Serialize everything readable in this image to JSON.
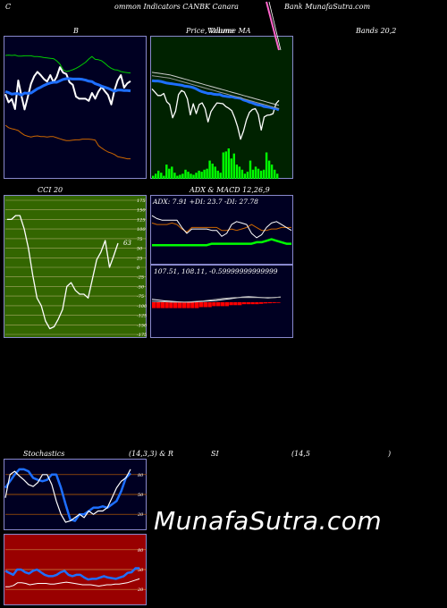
{
  "header": {
    "left": "C",
    "center": "ommon  Indicators CANBK Canara",
    "right": "Bank MunafaSutra.com"
  },
  "watermark": "MunafaSutra.com",
  "colors": {
    "bg": "#000000",
    "navy": "#000022",
    "green_panel": "#002200",
    "olive": "#336600",
    "maroon": "#990000",
    "blue_line": "#1e6fff",
    "volume_green": "#00ff00"
  },
  "chart_data": [
    {
      "id": "bollinger",
      "type": "line",
      "title": "B",
      "title_right": "Bands 20,2",
      "series": [
        {
          "color": "#ffffff",
          "values": [
            10.7,
            8.4,
            9.3,
            6.5,
            14.5,
            10.3,
            6.4,
            9.9,
            13.6,
            15.7,
            16.9,
            16.0,
            14.9,
            14.2,
            16.0,
            14.0,
            15.5,
            18.2,
            16.7,
            16.3,
            14.0,
            13.3,
            10.0,
            9.4,
            9.4,
            9.4,
            8.8,
            11.0,
            9.4,
            11.4,
            12.7,
            11.5,
            10.4,
            7.8,
            11.8,
            14.5,
            16.0,
            12.5,
            13.7,
            14.3
          ]
        },
        {
          "color": "#1e6fff",
          "values": [
            11.4,
            11.1,
            10.7,
            10.8,
            10.8,
            10.4,
            11.0,
            10.9,
            11.0,
            11.6,
            12.2,
            12.6,
            13.1,
            13.5,
            13.8,
            14.0,
            14.0,
            14.4,
            14.8,
            15.0,
            15.0,
            14.9,
            14.9,
            14.9,
            14.8,
            14.6,
            14.3,
            14.2,
            13.6,
            13.3,
            12.9,
            12.6,
            12.3,
            11.9,
            11.5,
            11.8,
            11.8,
            11.7,
            11.7,
            11.6
          ]
        },
        {
          "color": "#00cc00",
          "values": [
            21.5,
            21.6,
            21.5,
            21.6,
            21.3,
            21.3,
            21.4,
            21.4,
            21.4,
            21.2,
            21.2,
            21.1,
            20.9,
            20.8,
            20.7,
            20.6,
            20.0,
            19.1,
            17.5,
            17.0,
            17.2,
            17.5,
            17.9,
            18.4,
            19.0,
            19.6,
            20.5,
            21.2,
            20.4,
            20.3,
            20.0,
            19.3,
            18.5,
            17.9,
            17.5,
            17.4,
            17.0,
            16.8,
            16.7,
            16.6
          ]
        },
        {
          "color": "#cc6600",
          "values": [
            2.0,
            1.3,
            1.0,
            0.8,
            0.5,
            -0.2,
            -0.8,
            -1.1,
            -1.3,
            -1.1,
            -1.0,
            -1.2,
            -1.2,
            -1.3,
            -1.2,
            -1.2,
            -1.5,
            -1.8,
            -2.1,
            -2.3,
            -2.3,
            -2.2,
            -2.1,
            -2.1,
            -1.9,
            -1.9,
            -1.9,
            -2.0,
            -2.2,
            -3.7,
            -4.4,
            -5.0,
            -5.5,
            -5.8,
            -6.2,
            -6.8,
            -7.0,
            -7.2,
            -7.4,
            -7.4
          ]
        }
      ]
    },
    {
      "id": "price_volume",
      "type": "line",
      "title": "Price,  Volume  MA",
      "overlay_title": "Volume",
      "series": [
        {
          "color": "#ffffff",
          "values": [
            14.0,
            13.2,
            12.4,
            12.4,
            12.9,
            10.9,
            10.2,
            7.0,
            8.6,
            12.6,
            13.6,
            13.2,
            11.6,
            7.7,
            10.4,
            8.0,
            10.2,
            10.6,
            9.2,
            6.0,
            8.5,
            9.6,
            10.6,
            10.5,
            10.4,
            9.7,
            9.3,
            8.7,
            7.0,
            4.8,
            1.8,
            3.8,
            6.5,
            8.3,
            9.0,
            9.2,
            7.8,
            4.0,
            7.2,
            7.6,
            7.7,
            8.0,
            10.4,
            11.2
          ]
        },
        {
          "color": "#1e6fff",
          "values": [
            16.0,
            15.9,
            15.9,
            15.8,
            15.6,
            15.4,
            15.3,
            15.2,
            15.1,
            15.0,
            14.9,
            14.7,
            14.6,
            14.5,
            14.3,
            14.0,
            13.6,
            13.3,
            13.1,
            12.9,
            12.9,
            12.7,
            12.6,
            12.6,
            12.3,
            12.2,
            12.1,
            12.1,
            11.9,
            11.8,
            11.7,
            11.3,
            11.1,
            10.8,
            10.6,
            10.3,
            10.1,
            10.0,
            9.7,
            9.6,
            9.5,
            9.3,
            9.2,
            8.9
          ]
        },
        {
          "color": "#cccccc",
          "values": [
            18.0,
            17.9,
            17.8,
            17.7,
            17.6,
            17.5,
            17.4,
            17.2,
            17.0,
            16.8,
            16.6,
            16.4,
            16.2,
            16.0,
            15.8,
            15.6,
            15.4,
            15.2,
            15.0,
            14.8,
            14.6,
            14.4,
            14.2,
            14.0,
            13.8,
            13.6,
            13.4,
            13.2,
            13.0,
            12.8,
            12.6,
            12.4,
            12.2,
            12.0,
            11.8,
            11.6,
            11.4,
            11.2,
            11.0,
            10.8,
            10.6,
            10.4,
            10.2,
            10.0
          ]
        },
        {
          "color": "#999999",
          "values": [
            17.2,
            17.1,
            17.0,
            16.9,
            16.8,
            16.7,
            16.6,
            16.4,
            16.2,
            16.0,
            15.8,
            15.6,
            15.4,
            15.2,
            15.0,
            14.8,
            14.6,
            14.4,
            14.2,
            14.0,
            13.8,
            13.6,
            13.4,
            13.2,
            13.0,
            12.8,
            12.6,
            12.4,
            12.2,
            12.0,
            11.8,
            11.6,
            11.4,
            11.2,
            11.0,
            10.8,
            10.6,
            10.4,
            10.2,
            10.0,
            9.8,
            9.6,
            9.4,
            9.2
          ]
        }
      ],
      "volume": [
        3,
        5,
        8,
        6,
        3,
        14,
        10,
        12,
        6,
        3,
        4,
        5,
        9,
        7,
        5,
        4,
        6,
        8,
        7,
        9,
        10,
        18,
        15,
        12,
        8,
        6,
        26,
        27,
        30,
        20,
        25,
        14,
        12,
        9,
        5,
        7,
        18,
        9,
        12,
        10,
        8,
        9,
        26,
        18,
        14,
        9,
        5
      ]
    },
    {
      "id": "cci",
      "type": "line",
      "title": "CCI 20",
      "ticks": [
        "175",
        "150",
        "125",
        "100",
        "75",
        "50",
        "25",
        "0",
        "-25",
        "-50",
        "-75",
        "-100",
        "-125",
        "-150",
        "-175"
      ],
      "ylim": [
        -175,
        175
      ],
      "last_label": "63",
      "series": [
        {
          "color": "#ffffff",
          "values": [
            125,
            125,
            135,
            135,
            100,
            50,
            -20,
            -80,
            -100,
            -140,
            -160,
            -155,
            -135,
            -110,
            -50,
            -40,
            -60,
            -70,
            -70,
            -80,
            -30,
            20,
            40,
            70,
            0,
            30,
            63
          ]
        }
      ]
    },
    {
      "id": "adx_macd",
      "type": "line",
      "title": "ADX  & MACD 12,26,9",
      "adx_label": "ADX: 7.91  +DI: 23.7 -DI: 27.78",
      "macd_label": "107.51,  108.11,  -0.59999999999999",
      "adx_series": [
        {
          "color": "#cc6600",
          "values": [
            27,
            26,
            26,
            26,
            27,
            26,
            23,
            21,
            24,
            24,
            24,
            24,
            24,
            24,
            22,
            22,
            23,
            22,
            23,
            24,
            26,
            24,
            22,
            22,
            23,
            23,
            24,
            24,
            24
          ]
        },
        {
          "color": "#00ff00",
          "values": [
            12,
            12,
            12,
            12,
            12,
            12,
            12,
            12,
            12,
            12,
            12,
            12,
            13,
            13,
            13,
            13,
            13,
            13,
            13,
            13,
            13,
            14,
            14,
            15,
            16,
            15,
            14,
            13,
            13
          ]
        },
        {
          "color": "#ffffff",
          "values": [
            32,
            30,
            29,
            29,
            29,
            29,
            24,
            20,
            23,
            23,
            23,
            23,
            22,
            22,
            18,
            20,
            26,
            28,
            27,
            26,
            20,
            17,
            19,
            24,
            27,
            28,
            26,
            24,
            22
          ]
        }
      ],
      "macd_series": [
        {
          "color": "#ffffff",
          "values": [
            2,
            1.8,
            1.6,
            1.5,
            1.4,
            1.3,
            1.3,
            1.4,
            1.5,
            1.6,
            1.7,
            1.9,
            2.1,
            2.3,
            2.5,
            2.6,
            2.5,
            2.4,
            2.3,
            2.4,
            2.5
          ]
        },
        {
          "color": "#aaaaaa",
          "values": [
            1.5,
            1.4,
            1.4,
            1.3,
            1.3,
            1.3,
            1.4,
            1.5,
            1.6,
            1.8,
            2.0,
            2.2,
            2.3,
            2.4,
            2.4,
            2.4,
            2.4,
            2.4,
            2.4,
            2.4,
            2.5
          ]
        }
      ],
      "histogram": [
        -3,
        -3,
        -3,
        -3,
        -3,
        -3,
        -3,
        -3,
        -3,
        -3,
        -3,
        -2.5,
        -2.5,
        -2.5,
        -2,
        -2,
        -2,
        -2,
        -1.5,
        -1.5,
        -1.5,
        -1,
        -1,
        -1,
        -1,
        -0.8,
        -0.6,
        -0.5,
        -0.4,
        -0.3
      ]
    },
    {
      "id": "stochastics",
      "type": "line",
      "title": "Stochastics",
      "params": "(14,3,3) & R",
      "ticks": [
        "80",
        "50",
        "20"
      ],
      "ylim": [
        0,
        100
      ],
      "series": [
        {
          "color": "#1e6fff",
          "values": [
            60,
            70,
            80,
            88,
            88,
            85,
            75,
            72,
            70,
            72,
            80,
            80,
            60,
            35,
            12,
            10,
            20,
            20,
            25,
            30,
            30,
            32,
            30,
            35,
            40,
            55,
            75,
            82
          ]
        },
        {
          "color": "#ffffff",
          "values": [
            45,
            80,
            85,
            78,
            72,
            65,
            62,
            68,
            80,
            80,
            65,
            40,
            20,
            8,
            10,
            15,
            20,
            15,
            25,
            20,
            25,
            25,
            30,
            45,
            60,
            70,
            75,
            88
          ]
        }
      ]
    },
    {
      "id": "rsi",
      "type": "line",
      "title": "SI",
      "params": "(14,5",
      "params_end": ")",
      "ticks": [
        "80",
        "50",
        "20"
      ],
      "ylim": [
        0,
        100
      ],
      "series": [
        {
          "color": "#1e6fff",
          "values": [
            48,
            45,
            42,
            50,
            50,
            46,
            44,
            48,
            50,
            46,
            42,
            40,
            40,
            42,
            46,
            48,
            42,
            40,
            42,
            42,
            38,
            35,
            36,
            36,
            38,
            40,
            38,
            37,
            36,
            38,
            40,
            45,
            46,
            52,
            52
          ]
        },
        {
          "color": "#ffffff",
          "values": [
            24,
            24,
            26,
            30,
            30,
            29,
            27,
            28,
            29,
            29,
            29,
            28,
            28,
            29,
            30,
            31,
            30,
            29,
            28,
            27,
            27,
            27,
            26,
            25,
            26,
            27,
            27,
            28,
            28,
            29,
            30,
            32,
            34,
            36
          ]
        }
      ]
    }
  ]
}
